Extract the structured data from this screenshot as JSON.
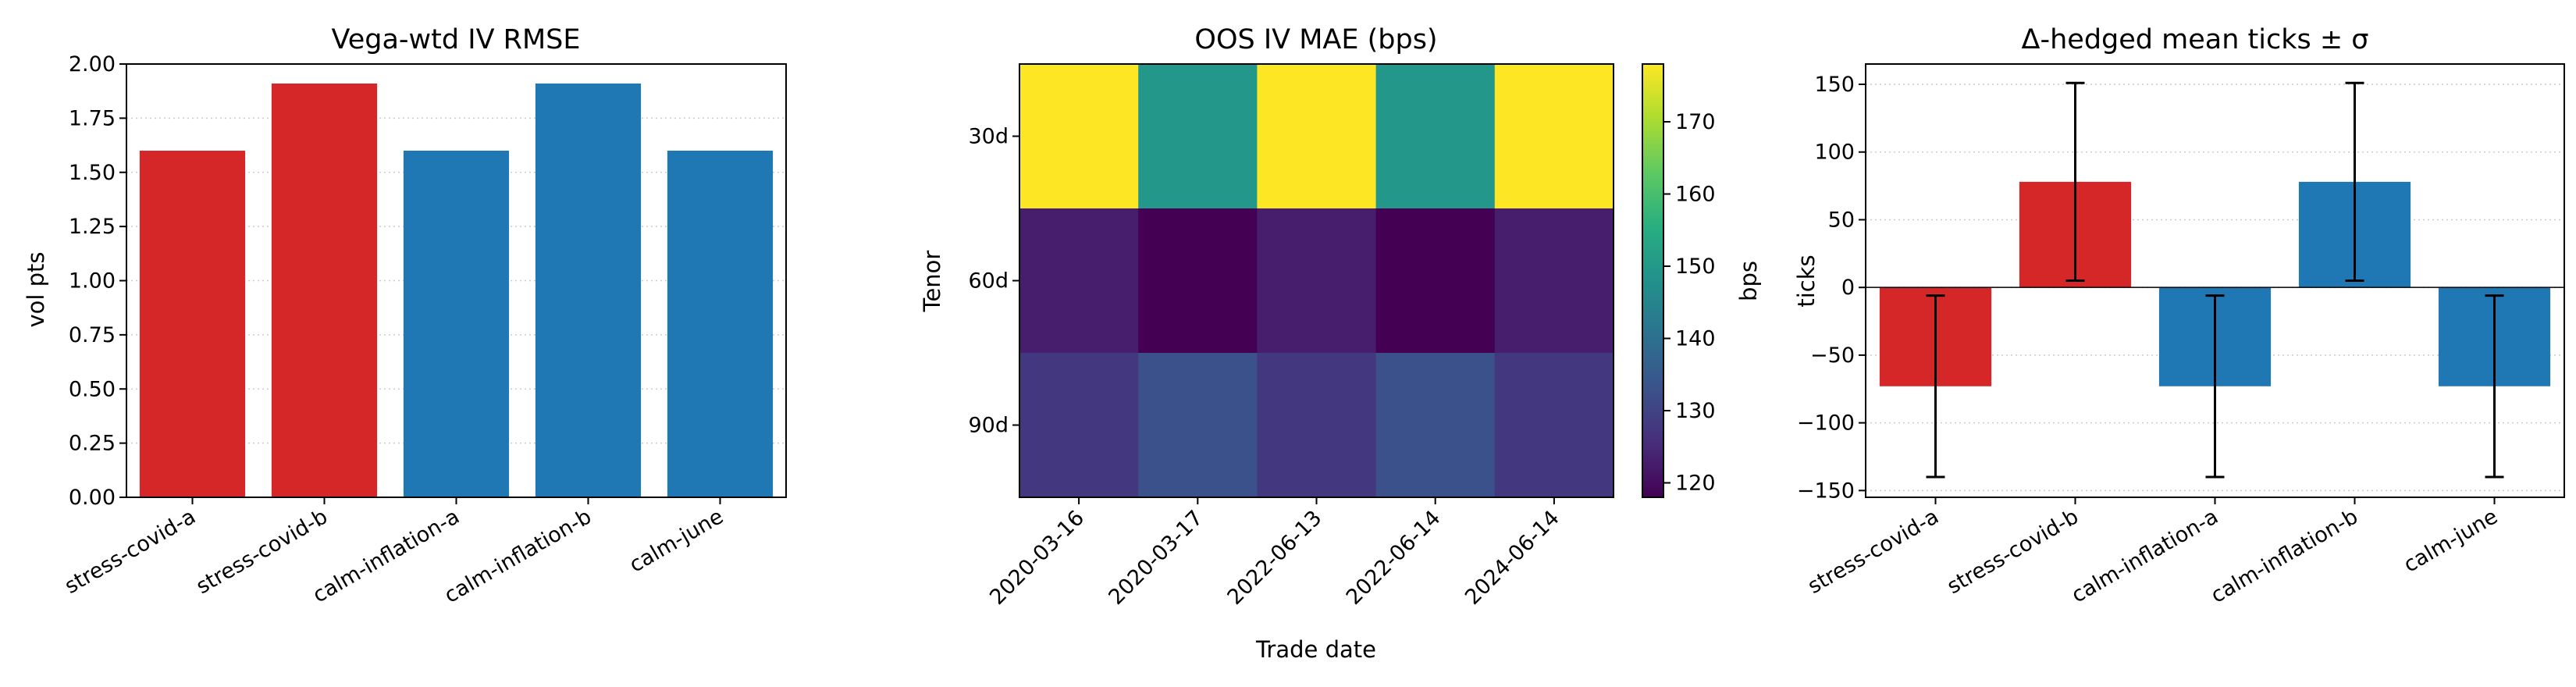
{
  "chart_data": [
    {
      "type": "bar",
      "title": "Vega-wtd IV RMSE",
      "xlabel": "",
      "ylabel": "vol pts",
      "categories": [
        "stress-covid-a",
        "stress-covid-b",
        "calm-inflation-a",
        "calm-inflation-b",
        "calm-june"
      ],
      "values": [
        1.6,
        1.91,
        1.6,
        1.91,
        1.6
      ],
      "bar_colors": [
        "#d62728",
        "#d62728",
        "#1f77b4",
        "#1f77b4",
        "#1f77b4"
      ],
      "ylim": [
        0,
        2.0
      ],
      "yticks": [
        "0.00",
        "0.25",
        "0.50",
        "0.75",
        "1.00",
        "1.25",
        "1.50",
        "1.75",
        "2.00"
      ],
      "grid": "horizontal dotted"
    },
    {
      "type": "heatmap",
      "title": "OOS IV MAE (bps)",
      "xlabel": "Trade date",
      "ylabel": "Tenor",
      "x": [
        "2020-03-16",
        "2020-03-17",
        "2022-06-13",
        "2022-06-14",
        "2024-06-14"
      ],
      "y": [
        "30d",
        "60d",
        "90d"
      ],
      "values": [
        [
          178,
          150,
          178,
          150,
          178
        ],
        [
          123,
          118,
          123,
          118,
          123
        ],
        [
          128,
          133,
          128,
          133,
          128
        ]
      ],
      "colormap": "viridis",
      "colorbar": {
        "label": "bps",
        "range": [
          118,
          178
        ],
        "ticks": [
          "120",
          "130",
          "140",
          "150",
          "160",
          "170"
        ]
      }
    },
    {
      "type": "bar",
      "title": "Δ-hedged mean ticks ± σ",
      "xlabel": "",
      "ylabel": "ticks",
      "categories": [
        "stress-covid-a",
        "stress-covid-b",
        "calm-inflation-a",
        "calm-inflation-b",
        "calm-june"
      ],
      "values": [
        -73,
        78,
        -73,
        78,
        -73
      ],
      "error": [
        67,
        73,
        67,
        73,
        67
      ],
      "bar_colors": [
        "#d62728",
        "#d62728",
        "#1f77b4",
        "#1f77b4",
        "#1f77b4"
      ],
      "ylim": [
        -155,
        165
      ],
      "yticks": [
        "−150",
        "−100",
        "−50",
        "0",
        "50",
        "100",
        "150"
      ],
      "grid": "horizontal dotted"
    }
  ]
}
